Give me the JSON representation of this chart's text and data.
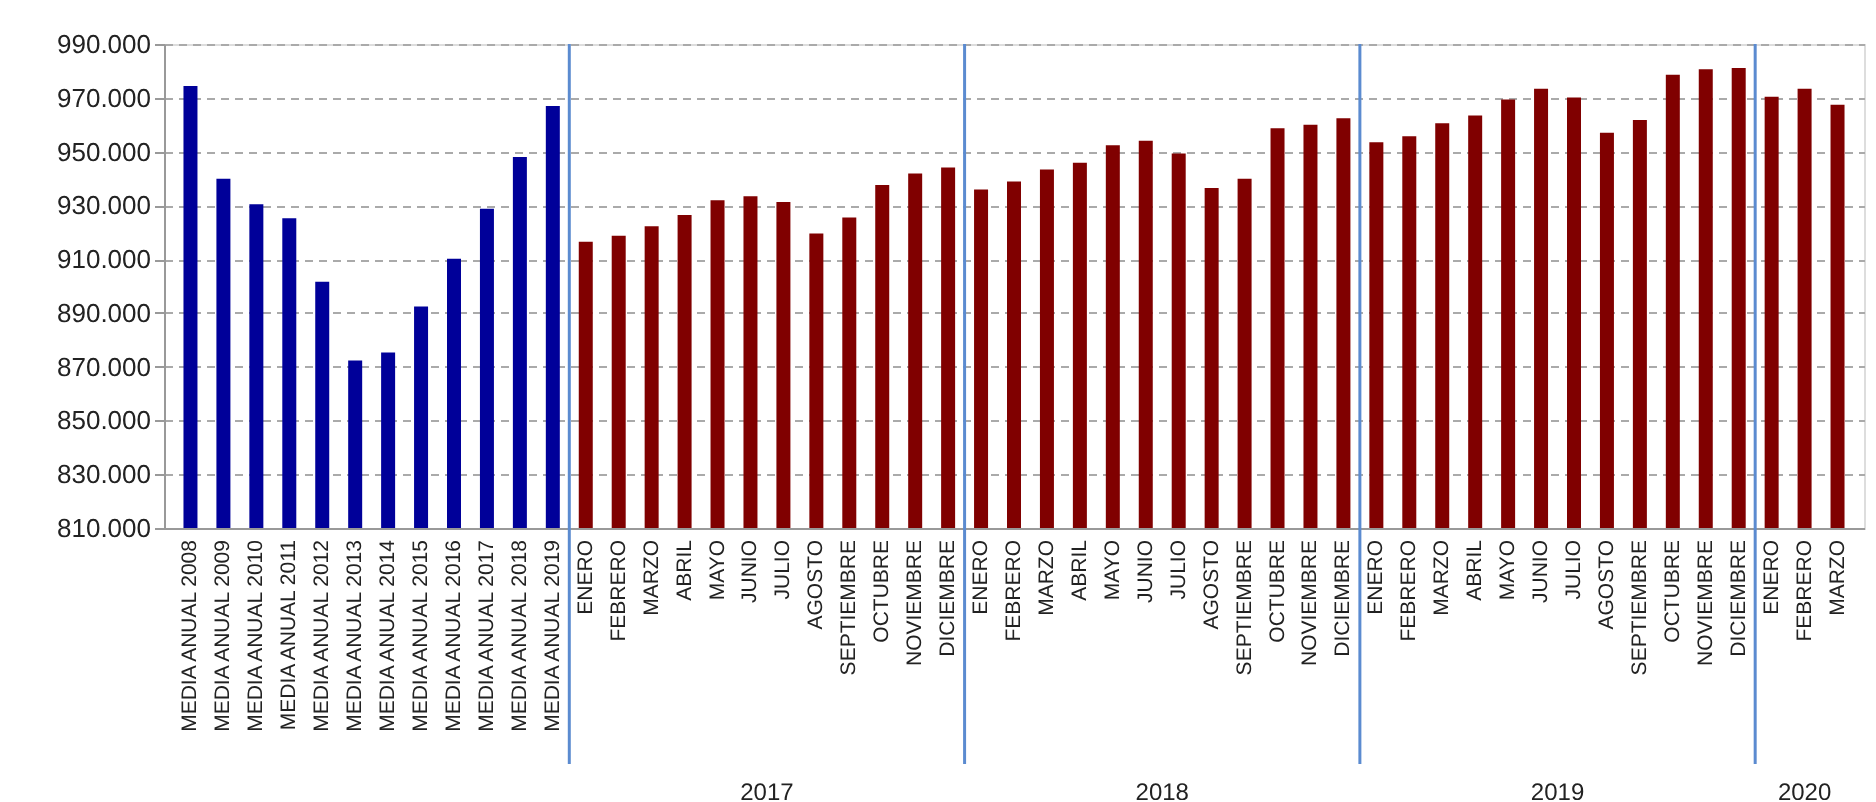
{
  "chart_data": {
    "type": "bar",
    "categories": [
      "MEDIA ANUAL 2008",
      "MEDIA ANUAL 2009",
      "MEDIA ANUAL 2010",
      "MEDIA ANUAL 2011",
      "MEDIA ANUAL 2012",
      "MEDIA ANUAL 2013",
      "MEDIA ANUAL 2014",
      "MEDIA ANUAL 2015",
      "MEDIA ANUAL 2016",
      "MEDIA ANUAL 2017",
      "MEDIA ANUAL 2018",
      "MEDIA ANUAL 2019",
      "ENERO",
      "FEBRERO",
      "MARZO",
      "ABRIL",
      "MAYO",
      "JUNIO",
      "JULIO",
      "AGOSTO",
      "SEPTIEMBRE",
      "OCTUBRE",
      "NOVIEMBRE",
      "DICIEMBRE",
      "ENERO",
      "FEBRERO",
      "MARZO",
      "ABRIL",
      "MAYO",
      "JUNIO",
      "JULIO",
      "AGOSTO",
      "SEPTIEMBRE",
      "OCTUBRE",
      "NOVIEMBRE",
      "DICIEMBRE",
      "ENERO",
      "FEBRERO",
      "MARZO",
      "ABRIL",
      "MAYO",
      "JUNIO",
      "JULIO",
      "AGOSTO",
      "SEPTIEMBRE",
      "OCTUBRE",
      "NOVIEMBRE",
      "DICIEMBRE",
      "ENERO",
      "FEBRERO",
      "MARZO"
    ],
    "series": [
      {
        "color": "#000099",
        "values": [
          974400,
          939900,
          930400,
          925200,
          901600,
          872300,
          875300,
          892400,
          910100,
          928700,
          948000,
          966900,
          null,
          null,
          null,
          null,
          null,
          null,
          null,
          null,
          null,
          null,
          null,
          null,
          null,
          null,
          null,
          null,
          null,
          null,
          null,
          null,
          null,
          null,
          null,
          null,
          null,
          null,
          null,
          null,
          null,
          null,
          null,
          null,
          null,
          null,
          null,
          null,
          null,
          null,
          null
        ]
      },
      {
        "color": "#800000",
        "values": [
          null,
          null,
          null,
          null,
          null,
          null,
          null,
          null,
          null,
          null,
          null,
          null,
          916500,
          918700,
          922200,
          926400,
          931900,
          933400,
          931200,
          919500,
          925500,
          937600,
          941800,
          944100,
          935900,
          938900,
          943300,
          945800,
          952300,
          954000,
          949300,
          936400,
          939900,
          958700,
          960000,
          962400,
          953500,
          955700,
          960500,
          963400,
          969400,
          973400,
          970100,
          957000,
          961700,
          978600,
          980600,
          981100,
          970400,
          973400,
          967400
        ]
      }
    ],
    "annotations": [
      "2017",
      "2018",
      "2019",
      "2020"
    ],
    "ylim": [
      810000,
      990000
    ],
    "yticks": [
      {
        "value": 810000,
        "label": "810.000"
      },
      {
        "value": 830000,
        "label": "830.000"
      },
      {
        "value": 850000,
        "label": "850.000"
      },
      {
        "value": 870000,
        "label": "870.000"
      },
      {
        "value": 890000,
        "label": "890.000"
      },
      {
        "value": 910000,
        "label": "910.000"
      },
      {
        "value": 930000,
        "label": "930.000"
      },
      {
        "value": 950000,
        "label": "950.000"
      },
      {
        "value": 970000,
        "label": "970.000"
      },
      {
        "value": 990000,
        "label": "990.000"
      }
    ],
    "grid": "y",
    "legend": false
  }
}
